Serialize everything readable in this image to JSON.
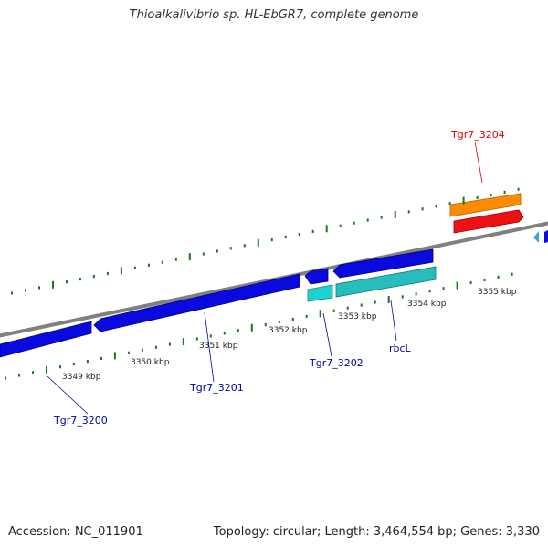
{
  "title": "Thioalkalivibrio sp. HL-EbGR7, complete genome",
  "footer": {
    "accession": "Accession: NC_011901",
    "summary": "Topology: circular; Length: 3,464,554 bp; Genes: 3,330"
  },
  "ruler": {
    "labels": [
      "3349 kbp",
      "3350 kbp",
      "3351 kbp",
      "3352 kbp",
      "3353 kbp",
      "3354 kbp",
      "3355 kbp"
    ]
  },
  "genes": [
    {
      "label": "Tgr7_3200",
      "color": "#0000aa"
    },
    {
      "label": "Tgr7_3201",
      "color": "#0000aa"
    },
    {
      "label": "Tgr7_3202",
      "color": "#0000aa"
    },
    {
      "label": "rbcL",
      "color": "#0000aa"
    },
    {
      "label": "Tgr7_3204",
      "color": "#dd0000"
    }
  ],
  "colors": {
    "backbone": "#808080",
    "tick": "#1a7a1a",
    "gene_blue": "#0a0ae0",
    "gene_cyan": "#1fd2d2",
    "gene_teal": "#28bcbc",
    "gene_orange": "#ff8c00",
    "gene_red": "#ee1111",
    "gene_lightblue": "#3aa8e0"
  }
}
